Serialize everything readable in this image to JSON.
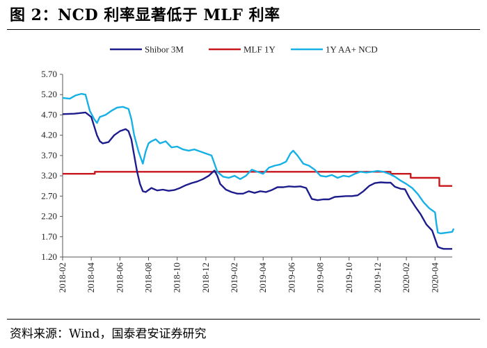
{
  "page": {
    "title": "图 2：NCD 利率显著低于 MLF 利率",
    "source": "资料来源：Wind，国泰君安证券研究"
  },
  "chart_data": {
    "type": "line",
    "title": "图 2：NCD 利率显著低于 MLF 利率",
    "xlabel": "",
    "ylabel": "",
    "ylim": [
      1.2,
      5.7
    ],
    "yticks": [
      "1.20",
      "1.70",
      "2.20",
      "2.70",
      "3.20",
      "3.70",
      "4.20",
      "4.70",
      "5.20",
      "5.70"
    ],
    "xlim": [
      0,
      27.2
    ],
    "xticks": [
      {
        "x": 0,
        "label": "2018-02"
      },
      {
        "x": 2,
        "label": "2018-04"
      },
      {
        "x": 4,
        "label": "2018-06"
      },
      {
        "x": 6,
        "label": "2018-08"
      },
      {
        "x": 8,
        "label": "2018-10"
      },
      {
        "x": 10,
        "label": "2018-12"
      },
      {
        "x": 12,
        "label": "2019-02"
      },
      {
        "x": 14,
        "label": "2019-04"
      },
      {
        "x": 16,
        "label": "2019-06"
      },
      {
        "x": 18,
        "label": "2019-08"
      },
      {
        "x": 20,
        "label": "2019-10"
      },
      {
        "x": 22,
        "label": "2019-12"
      },
      {
        "x": 24,
        "label": "2020-02"
      },
      {
        "x": 26,
        "label": "2020-04"
      }
    ],
    "x_unit": "months since 2018-02",
    "legend_position": "top-center",
    "series": [
      {
        "name": "Shibor 3M",
        "color": "#1c1c8c",
        "points": [
          [
            0,
            4.72
          ],
          [
            0.8,
            4.73
          ],
          [
            1.6,
            4.76
          ],
          [
            2.0,
            4.65
          ],
          [
            2.4,
            4.2
          ],
          [
            2.6,
            4.05
          ],
          [
            2.8,
            4.0
          ],
          [
            3.2,
            4.03
          ],
          [
            3.6,
            4.2
          ],
          [
            4.0,
            4.3
          ],
          [
            4.4,
            4.35
          ],
          [
            4.6,
            4.3
          ],
          [
            4.8,
            4.1
          ],
          [
            5.0,
            3.7
          ],
          [
            5.2,
            3.3
          ],
          [
            5.4,
            3.0
          ],
          [
            5.6,
            2.82
          ],
          [
            5.8,
            2.8
          ],
          [
            6.2,
            2.9
          ],
          [
            6.6,
            2.84
          ],
          [
            7.0,
            2.86
          ],
          [
            7.4,
            2.83
          ],
          [
            7.8,
            2.85
          ],
          [
            8.2,
            2.9
          ],
          [
            8.6,
            2.97
          ],
          [
            9.0,
            3.02
          ],
          [
            9.4,
            3.06
          ],
          [
            9.8,
            3.12
          ],
          [
            10.2,
            3.2
          ],
          [
            10.6,
            3.33
          ],
          [
            10.8,
            3.2
          ],
          [
            11.0,
            3.0
          ],
          [
            11.4,
            2.86
          ],
          [
            11.8,
            2.8
          ],
          [
            12.2,
            2.76
          ],
          [
            12.6,
            2.76
          ],
          [
            13.0,
            2.82
          ],
          [
            13.4,
            2.78
          ],
          [
            13.8,
            2.82
          ],
          [
            14.2,
            2.8
          ],
          [
            14.6,
            2.85
          ],
          [
            15.0,
            2.92
          ],
          [
            15.4,
            2.92
          ],
          [
            15.8,
            2.94
          ],
          [
            16.2,
            2.93
          ],
          [
            16.6,
            2.94
          ],
          [
            17.0,
            2.9
          ],
          [
            17.4,
            2.63
          ],
          [
            17.8,
            2.6
          ],
          [
            18.2,
            2.62
          ],
          [
            18.6,
            2.62
          ],
          [
            19.0,
            2.68
          ],
          [
            19.4,
            2.69
          ],
          [
            19.8,
            2.7
          ],
          [
            20.2,
            2.7
          ],
          [
            20.6,
            2.72
          ],
          [
            21.0,
            2.82
          ],
          [
            21.4,
            2.95
          ],
          [
            21.8,
            3.02
          ],
          [
            22.2,
            3.04
          ],
          [
            22.6,
            3.03
          ],
          [
            22.9,
            3.03
          ],
          [
            23.2,
            2.93
          ],
          [
            23.6,
            2.88
          ],
          [
            23.9,
            2.87
          ],
          [
            24.2,
            2.67
          ],
          [
            24.6,
            2.45
          ],
          [
            25.0,
            2.25
          ],
          [
            25.4,
            2.0
          ],
          [
            25.8,
            1.85
          ],
          [
            26.0,
            1.65
          ],
          [
            26.2,
            1.45
          ],
          [
            26.4,
            1.42
          ],
          [
            26.6,
            1.4
          ],
          [
            27.2,
            1.4
          ]
        ]
      },
      {
        "name": "MLF 1Y",
        "color": "#c8161d",
        "points": [
          [
            0,
            3.25
          ],
          [
            2.25,
            3.25
          ],
          [
            2.25,
            3.3
          ],
          [
            22.9,
            3.3
          ],
          [
            22.9,
            3.25
          ],
          [
            24.3,
            3.25
          ],
          [
            24.3,
            3.15
          ],
          [
            26.3,
            3.15
          ],
          [
            26.3,
            2.95
          ],
          [
            27.2,
            2.95
          ]
        ]
      },
      {
        "name": "1Y AA+ NCD",
        "color": "#15b0e6",
        "points": [
          [
            0,
            5.12
          ],
          [
            0.5,
            5.1
          ],
          [
            0.9,
            5.18
          ],
          [
            1.3,
            5.22
          ],
          [
            1.6,
            5.2
          ],
          [
            1.9,
            4.8
          ],
          [
            2.2,
            4.6
          ],
          [
            2.4,
            4.5
          ],
          [
            2.6,
            4.65
          ],
          [
            3.0,
            4.7
          ],
          [
            3.4,
            4.8
          ],
          [
            3.8,
            4.88
          ],
          [
            4.2,
            4.9
          ],
          [
            4.6,
            4.85
          ],
          [
            4.8,
            4.6
          ],
          [
            5.0,
            4.2
          ],
          [
            5.3,
            3.8
          ],
          [
            5.6,
            3.5
          ],
          [
            5.8,
            3.8
          ],
          [
            6.0,
            4.0
          ],
          [
            6.2,
            4.05
          ],
          [
            6.5,
            4.1
          ],
          [
            6.8,
            4.0
          ],
          [
            7.2,
            4.05
          ],
          [
            7.6,
            3.9
          ],
          [
            8.0,
            3.92
          ],
          [
            8.4,
            3.85
          ],
          [
            8.8,
            3.82
          ],
          [
            9.2,
            3.85
          ],
          [
            9.6,
            3.8
          ],
          [
            10.0,
            3.75
          ],
          [
            10.4,
            3.7
          ],
          [
            10.8,
            3.3
          ],
          [
            11.2,
            3.18
          ],
          [
            11.6,
            3.15
          ],
          [
            12.0,
            3.2
          ],
          [
            12.4,
            3.12
          ],
          [
            12.8,
            3.2
          ],
          [
            13.2,
            3.35
          ],
          [
            13.6,
            3.3
          ],
          [
            14.0,
            3.25
          ],
          [
            14.4,
            3.4
          ],
          [
            14.8,
            3.45
          ],
          [
            15.2,
            3.48
          ],
          [
            15.6,
            3.55
          ],
          [
            15.9,
            3.75
          ],
          [
            16.1,
            3.82
          ],
          [
            16.4,
            3.7
          ],
          [
            16.8,
            3.5
          ],
          [
            17.2,
            3.45
          ],
          [
            17.6,
            3.35
          ],
          [
            18.0,
            3.2
          ],
          [
            18.4,
            3.18
          ],
          [
            18.8,
            3.22
          ],
          [
            19.2,
            3.15
          ],
          [
            19.6,
            3.2
          ],
          [
            20.0,
            3.18
          ],
          [
            20.4,
            3.25
          ],
          [
            20.8,
            3.3
          ],
          [
            21.2,
            3.28
          ],
          [
            21.6,
            3.3
          ],
          [
            22.0,
            3.32
          ],
          [
            22.4,
            3.3
          ],
          [
            22.8,
            3.25
          ],
          [
            23.2,
            3.18
          ],
          [
            23.6,
            3.08
          ],
          [
            24.0,
            3.0
          ],
          [
            24.4,
            2.9
          ],
          [
            24.8,
            2.75
          ],
          [
            25.2,
            2.55
          ],
          [
            25.6,
            2.4
          ],
          [
            26.0,
            2.3
          ],
          [
            26.1,
            2.0
          ],
          [
            26.2,
            1.8
          ],
          [
            26.4,
            1.78
          ],
          [
            26.8,
            1.8
          ],
          [
            27.2,
            1.82
          ],
          [
            27.3,
            1.9
          ]
        ]
      }
    ]
  }
}
